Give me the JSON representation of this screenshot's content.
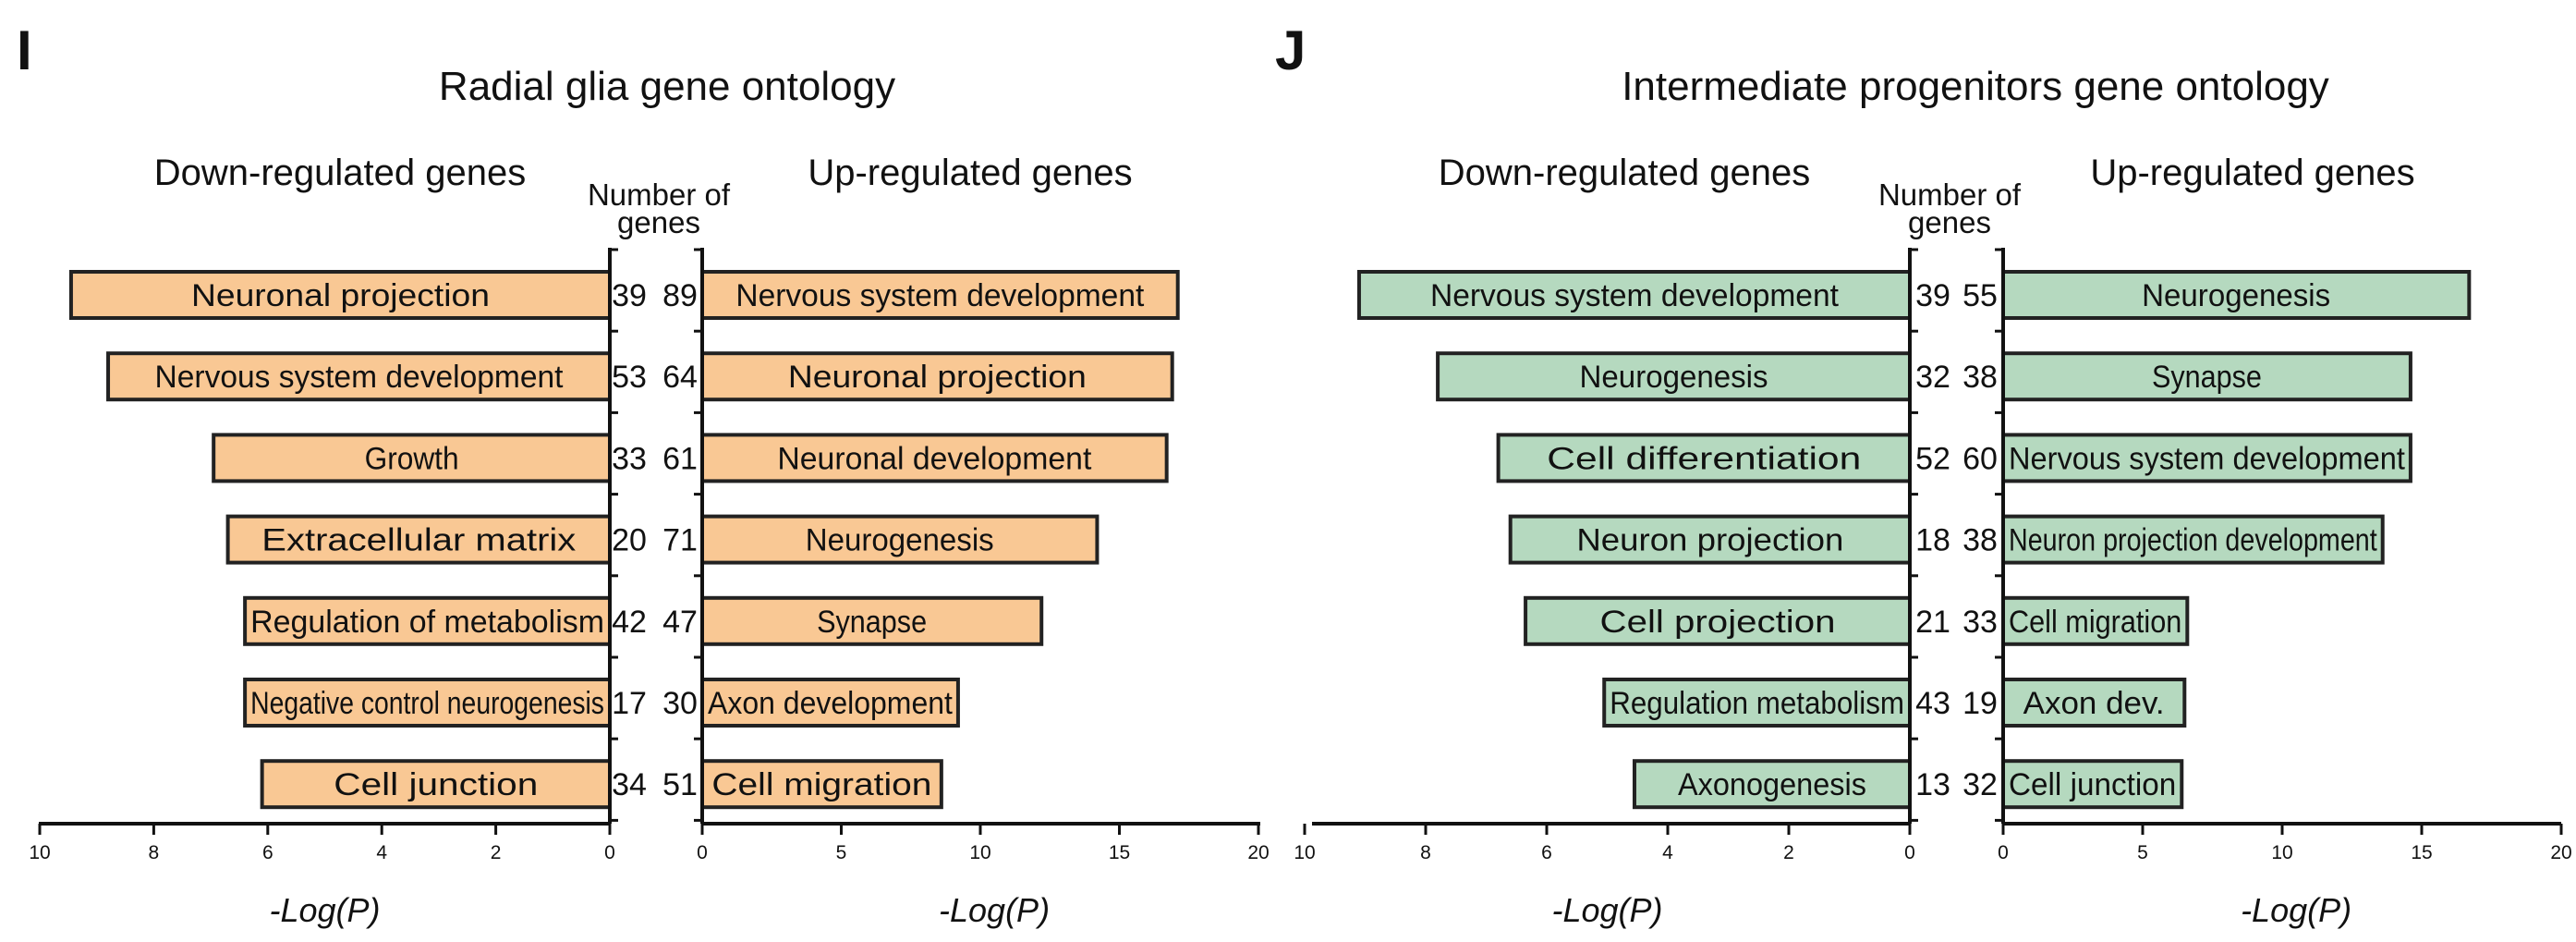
{
  "chart_data": [
    {
      "panel": "I",
      "type": "bar",
      "title": "Radial glia gene ontology",
      "count_header": "Number of genes",
      "down": {
        "title": "Down-regulated genes",
        "xlabel": "-Log(P)",
        "xlim": [
          0,
          10
        ],
        "ticks": [
          10,
          8,
          6,
          4,
          2,
          0
        ],
        "color": "#F9C894",
        "categories": [
          "Neuronal projection",
          "Nervous system development",
          "Growth",
          "Extracellular matrix",
          "Regulation of metabolism",
          "Negative control neurogenesis",
          "Cell junction"
        ],
        "values": [
          9.45,
          8.8,
          6.95,
          6.7,
          6.4,
          6.4,
          6.1
        ],
        "counts": [
          39,
          53,
          33,
          20,
          42,
          17,
          34
        ]
      },
      "up": {
        "title": "Up-regulated genes",
        "xlabel": "-Log(P)",
        "xlim": [
          0,
          20
        ],
        "ticks": [
          0,
          5,
          10,
          15,
          20
        ],
        "color": "#F9C894",
        "categories": [
          "Nervous system development",
          "Neuronal projection",
          "Neuronal development",
          "Neurogenesis",
          "Synapse",
          "Axon development",
          "Cell migration"
        ],
        "values": [
          17.1,
          16.9,
          16.7,
          14.2,
          12.2,
          9.2,
          8.6
        ],
        "counts": [
          89,
          64,
          61,
          71,
          47,
          30,
          51
        ]
      }
    },
    {
      "panel": "J",
      "type": "bar",
      "title": "Intermediate progenitors gene ontology",
      "count_header": "Number of genes",
      "down": {
        "title": "Down-regulated genes",
        "xlabel": "-Log(P)",
        "xlim": [
          0,
          10
        ],
        "ticks": [
          10,
          8,
          6,
          4,
          2,
          0
        ],
        "color": "#B5D9BF",
        "categories": [
          "Nervous system development",
          "Neurogenesis",
          "Cell differentiation",
          "Neuron projection",
          "Cell projection",
          "Regulation metabolism",
          "Axonogenesis"
        ],
        "values": [
          9.1,
          7.8,
          6.8,
          6.6,
          6.35,
          5.05,
          4.55
        ],
        "counts": [
          39,
          32,
          52,
          18,
          21,
          43,
          13
        ]
      },
      "up": {
        "title": "Up-regulated genes",
        "xlabel": "-Log(P)",
        "xlim": [
          0,
          20
        ],
        "ticks": [
          0,
          5,
          10,
          15,
          20
        ],
        "color": "#B5D9BF",
        "categories": [
          "Neurogenesis",
          "Synapse",
          "Nervous system development",
          "Neuron projection development",
          "Cell migration",
          "Axon dev.",
          "Cell junction"
        ],
        "values": [
          16.7,
          14.6,
          14.6,
          13.6,
          6.6,
          6.5,
          6.4
        ],
        "counts": [
          55,
          38,
          60,
          38,
          33,
          19,
          32
        ]
      }
    }
  ]
}
